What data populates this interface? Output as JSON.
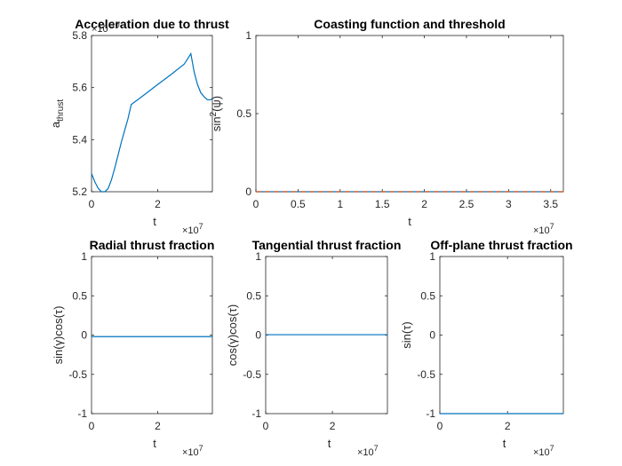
{
  "chart_data": [
    {
      "type": "line",
      "title": "Acceleration due to thrust",
      "xlabel": "t",
      "ylabel": "a_thrust",
      "x_exponent": "×10^7",
      "y_exponent": "×10^-10",
      "xlim": [
        0,
        3.65
      ],
      "ylim": [
        5.2,
        5.8
      ],
      "xticks": [
        0,
        2
      ],
      "xticklabels": [
        "0",
        "2"
      ],
      "yticks": [
        5.2,
        5.4,
        5.6,
        5.8
      ],
      "yticklabels": [
        "5.2",
        "5.4",
        "5.6",
        "5.8"
      ],
      "series": [
        {
          "x": [
            0,
            0.1,
            0.2,
            0.3,
            0.4,
            0.5,
            0.6,
            0.7,
            0.8,
            0.9,
            1.0,
            1.1,
            1.2,
            1.6,
            2.0,
            2.4,
            2.8,
            3.0,
            3.1,
            3.2,
            3.3,
            3.4,
            3.5,
            3.6,
            3.65
          ],
          "y": [
            5.27,
            5.238,
            5.213,
            5.2,
            5.2,
            5.212,
            5.245,
            5.29,
            5.34,
            5.39,
            5.435,
            5.48,
            5.535,
            5.573,
            5.612,
            5.65,
            5.69,
            5.73,
            5.66,
            5.612,
            5.58,
            5.565,
            5.553,
            5.553,
            5.558
          ]
        }
      ]
    },
    {
      "type": "line",
      "title": "Coasting function and threshold",
      "xlabel": "t",
      "ylabel": "sin^2(ψ)",
      "x_exponent": "×10^7",
      "xlim": [
        0,
        3.65
      ],
      "ylim": [
        0,
        1
      ],
      "xticks": [
        0,
        0.5,
        1,
        1.5,
        2,
        2.5,
        3,
        3.5
      ],
      "xticklabels": [
        "0",
        "0.5",
        "1",
        "1.5",
        "2",
        "2.5",
        "3",
        "3.5"
      ],
      "yticks": [
        0,
        0.5,
        1
      ],
      "yticklabels": [
        "0",
        "0.5",
        "1"
      ],
      "series": [
        {
          "style": "solid",
          "color": "#0072BD",
          "x": [
            0,
            3.65
          ],
          "y": [
            0,
            0
          ]
        },
        {
          "style": "dashed",
          "color": "#D95319",
          "x": [
            0,
            3.65
          ],
          "y": [
            0,
            0
          ]
        }
      ]
    },
    {
      "type": "line",
      "title": "Radial thrust fraction",
      "xlabel": "t",
      "ylabel": "sin(γ)cos(τ)",
      "x_exponent": "×10^7",
      "xlim": [
        0,
        3.65
      ],
      "ylim": [
        -1,
        1
      ],
      "xticks": [
        0,
        2
      ],
      "xticklabels": [
        "0",
        "2"
      ],
      "yticks": [
        -1,
        -0.5,
        0,
        0.5,
        1
      ],
      "yticklabels": [
        "-1",
        "-0.5",
        "0",
        "0.5",
        "1"
      ],
      "series": [
        {
          "x": [
            0,
            3.65
          ],
          "y": [
            -0.02,
            -0.02
          ]
        }
      ]
    },
    {
      "type": "line",
      "title": "Tangential thrust fraction",
      "xlabel": "t",
      "ylabel": "cos(γ)cos(τ)",
      "x_exponent": "×10^7",
      "xlim": [
        0,
        3.65
      ],
      "ylim": [
        -1,
        1
      ],
      "xticks": [
        0,
        2
      ],
      "xticklabels": [
        "0",
        "2"
      ],
      "yticks": [
        -1,
        -0.5,
        0,
        0.5,
        1
      ],
      "yticklabels": [
        "-1",
        "-0.5",
        "0",
        "0.5",
        "1"
      ],
      "series": [
        {
          "x": [
            0,
            3.65
          ],
          "y": [
            0.005,
            0.005
          ]
        }
      ]
    },
    {
      "type": "line",
      "title": "Off-plane thrust fraction",
      "xlabel": "t",
      "ylabel": "sin(τ)",
      "x_exponent": "×10^7",
      "xlim": [
        0,
        3.65
      ],
      "ylim": [
        -1,
        1
      ],
      "xticks": [
        0,
        2
      ],
      "xticklabels": [
        "0",
        "2"
      ],
      "yticks": [
        -1,
        -0.5,
        0,
        0.5,
        1
      ],
      "yticklabels": [
        "-1",
        "-0.5",
        "0",
        "0.5",
        "1"
      ],
      "series": [
        {
          "x": [
            0,
            3.65
          ],
          "y": [
            -0.9998,
            -0.9998
          ]
        }
      ]
    }
  ]
}
